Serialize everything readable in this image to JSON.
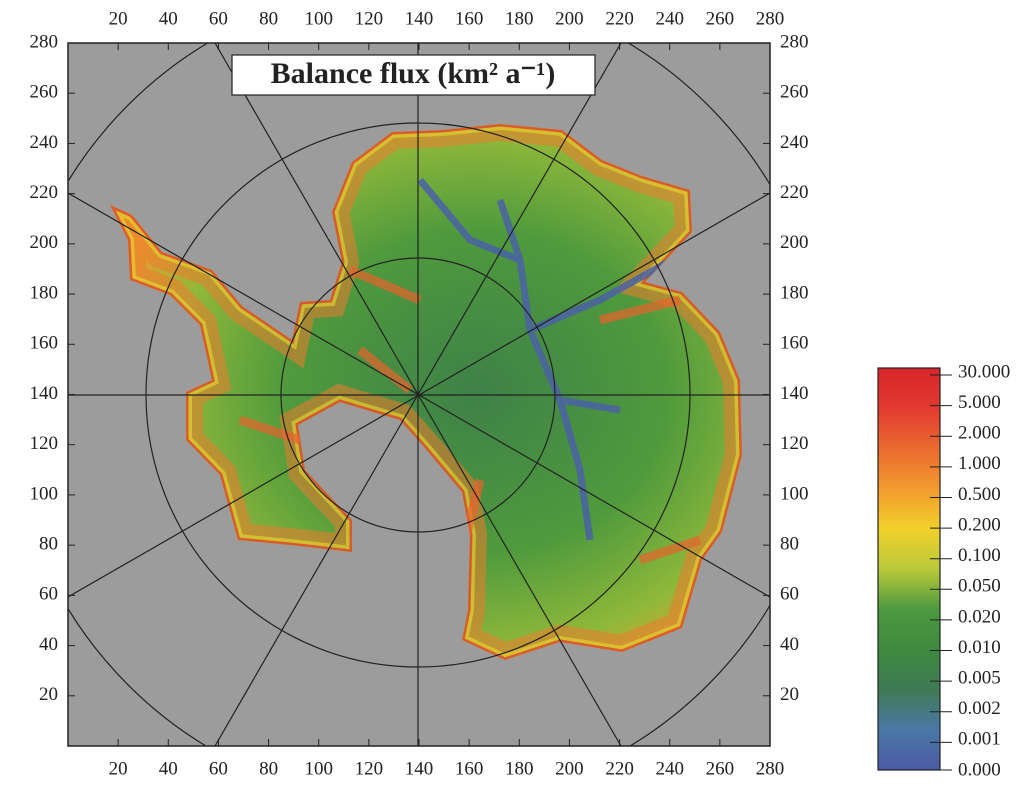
{
  "chart_data": {
    "type": "map",
    "title": "Balance flux (km² a⁻¹)",
    "xlim": [
      0,
      280
    ],
    "ylim": [
      0,
      280
    ],
    "xticks": [
      20,
      40,
      60,
      80,
      100,
      120,
      140,
      160,
      180,
      200,
      220,
      240,
      260,
      280
    ],
    "yticks": [
      20,
      40,
      60,
      80,
      100,
      120,
      140,
      160,
      180,
      200,
      220,
      240,
      260,
      280
    ],
    "colorbar": {
      "ticks": [
        {
          "value": 30,
          "label": "30.000"
        },
        {
          "value": 5,
          "label": "5.000"
        },
        {
          "value": 2,
          "label": "2.000"
        },
        {
          "value": 1,
          "label": "1.000"
        },
        {
          "value": 0.5,
          "label": "0.500"
        },
        {
          "value": 0.2,
          "label": "0.200"
        },
        {
          "value": 0.1,
          "label": "0.100"
        },
        {
          "value": 0.05,
          "label": "0.050"
        },
        {
          "value": 0.02,
          "label": "0.020"
        },
        {
          "value": 0.01,
          "label": "0.010"
        },
        {
          "value": 0.005,
          "label": "0.005"
        },
        {
          "value": 0.002,
          "label": "0.002"
        },
        {
          "value": 0.001,
          "label": "0.001"
        },
        {
          "value": 0,
          "label": "0.000"
        }
      ],
      "colors": [
        "#d8262b",
        "#e23a2f",
        "#ea6a30",
        "#f39a2e",
        "#f2d12c",
        "#b9c93a",
        "#4c9a3f",
        "#3e8a3f",
        "#3f7a55",
        "#4a78a6",
        "#4c5aa3"
      ]
    }
  }
}
